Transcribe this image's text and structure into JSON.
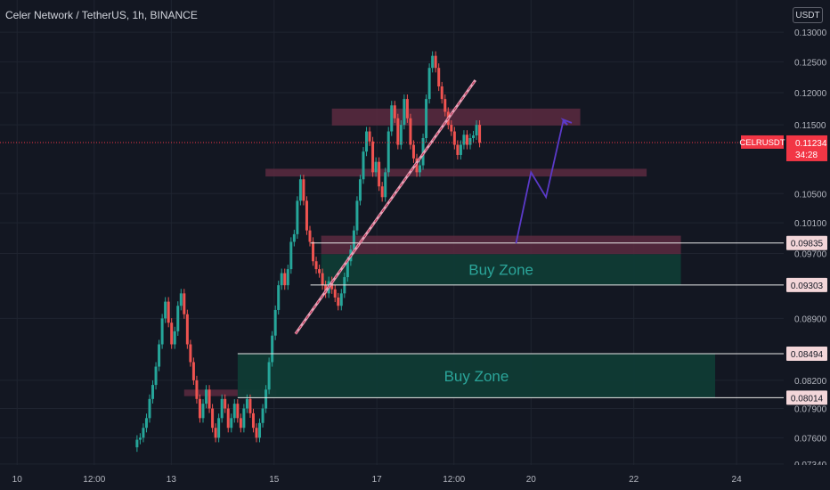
{
  "header": {
    "title": "Celer Network / TetherUS, 1h, BINANCE",
    "currency": "USDT"
  },
  "colors": {
    "background": "#131722",
    "grid": "#1f2430",
    "axis_text": "#b2b5be",
    "up": "#26a69a",
    "down": "#ef5350",
    "supply_zone": "#5c2a3f",
    "buy_zone": "#0f3b35",
    "buy_zone_text": "#2ba59a",
    "trendline": "#e5a1b6",
    "projection": "#5b3ac9",
    "price_label": "#f23645"
  },
  "chart_data": {
    "type": "candlestick",
    "title": "Celer Network / TetherUS, 1h, BINANCE",
    "y_axis": {
      "scale": "log",
      "range": [
        0.0733,
        0.1325
      ],
      "ticks": [
        "0.13000",
        "0.12500",
        "0.12000",
        "0.11500",
        "0.10500",
        "0.10100",
        "0.09700",
        "0.08900",
        "0.08200",
        "0.07900",
        "0.07600",
        "0.07340"
      ]
    },
    "x_axis": {
      "range": [
        0,
        320
      ],
      "ticks": [
        {
          "label": "10",
          "x": 8
        },
        {
          "label": "12:00",
          "x": 44
        },
        {
          "label": "13",
          "x": 80
        },
        {
          "label": "15",
          "x": 128
        },
        {
          "label": "17",
          "x": 176
        },
        {
          "label": "12:00",
          "x": 212
        },
        {
          "label": "20",
          "x": 248
        },
        {
          "label": "22",
          "x": 296
        },
        {
          "label": "24",
          "x": 344
        }
      ]
    },
    "grid": true,
    "current_price": {
      "symbol": "CELRUSDT",
      "value": "0.11234",
      "countdown": "34:28",
      "price": 0.11234
    },
    "levels": [
      {
        "label": "0.09835",
        "price": 0.09835,
        "x_start": 145
      },
      {
        "label": "0.09303",
        "price": 0.09303,
        "x_start": 145
      },
      {
        "label": "0.08494",
        "price": 0.08494,
        "x_start": 111
      },
      {
        "label": "0.08014",
        "price": 0.08014,
        "x_start": 111
      }
    ],
    "zones": [
      {
        "kind": "supply",
        "x_start": 155,
        "x_end": 271,
        "top": 0.1175,
        "bottom": 0.1149
      },
      {
        "kind": "supply",
        "x_start": 124,
        "x_end": 302,
        "top": 0.1085,
        "bottom": 0.1074
      },
      {
        "kind": "supply",
        "x_start": 150,
        "x_end": 318,
        "top": 0.0993,
        "bottom": 0.0969
      },
      {
        "kind": "supply",
        "x_start": 86,
        "x_end": 129,
        "top": 0.081,
        "bottom": 0.0803
      },
      {
        "kind": "buy",
        "x_start": 150,
        "x_end": 318,
        "top": 0.0969,
        "bottom": 0.093
      },
      {
        "kind": "buy",
        "x_start": 111,
        "x_end": 334,
        "top": 0.0849,
        "bottom": 0.0801
      }
    ],
    "zone_labels": [
      "Buy Zone",
      "Buy Zone"
    ],
    "trendline": {
      "x1": 138,
      "y1": 0.0872,
      "x2": 222,
      "y2": 0.122
    },
    "projection": [
      {
        "x": 241,
        "y": 0.0983
      },
      {
        "x": 248,
        "y": 0.108
      },
      {
        "x": 255,
        "y": 0.1045
      },
      {
        "x": 263,
        "y": 0.1155
      },
      {
        "x": 265,
        "y": 0.115
      },
      {
        "x": 263,
        "y": 0.1158
      },
      {
        "x": 267,
        "y": 0.1153
      }
    ],
    "candles_close": [
      0.0758,
      0.076,
      0.077,
      0.078,
      0.08,
      0.0815,
      0.0835,
      0.086,
      0.089,
      0.091,
      0.0885,
      0.086,
      0.0875,
      0.0905,
      0.092,
      0.0895,
      0.086,
      0.084,
      0.082,
      0.08,
      0.078,
      0.0795,
      0.081,
      0.079,
      0.077,
      0.076,
      0.078,
      0.08,
      0.079,
      0.077,
      0.078,
      0.0795,
      0.078,
      0.077,
      0.079,
      0.08,
      0.0785,
      0.077,
      0.076,
      0.0775,
      0.079,
      0.081,
      0.084,
      0.087,
      0.09,
      0.093,
      0.0945,
      0.093,
      0.095,
      0.0985,
      0.0995,
      0.104,
      0.107,
      0.104,
      0.1,
      0.0985,
      0.096,
      0.095,
      0.0945,
      0.093,
      0.092,
      0.0935,
      0.0925,
      0.0915,
      0.0905,
      0.092,
      0.094,
      0.096,
      0.0975,
      0.1,
      0.104,
      0.107,
      0.111,
      0.114,
      0.1125,
      0.108,
      0.1095,
      0.106,
      0.1045,
      0.108,
      0.114,
      0.118,
      0.116,
      0.112,
      0.115,
      0.119,
      0.116,
      0.112,
      0.11,
      0.108,
      0.109,
      0.113,
      0.119,
      0.124,
      0.126,
      0.124,
      0.121,
      0.119,
      0.117,
      0.115,
      0.114,
      0.112,
      0.1105,
      0.112,
      0.1135,
      0.112,
      0.113,
      0.1134,
      0.115,
      0.1123
    ]
  }
}
